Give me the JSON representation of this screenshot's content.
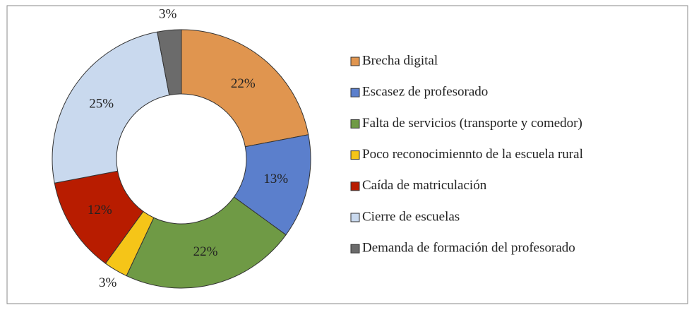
{
  "chart_data": {
    "type": "donut",
    "categories": [
      "Brecha digital",
      "Escasez de profesorado",
      "Falta de servicios (transporte y comedor)",
      "Poco reconocimiennto de la escuela rural",
      "Caída de matriculación",
      "Cierre de escuelas",
      "Demanda de formación del profesorado"
    ],
    "values": [
      22,
      13,
      22,
      3,
      12,
      25,
      3
    ],
    "value_labels": [
      "22%",
      "13%",
      "22%",
      "3%",
      "12%",
      "25%",
      "3%"
    ],
    "colors": [
      "#e0954f",
      "#5b7fcc",
      "#6f9a45",
      "#f5c518",
      "#b81c00",
      "#c9d9ee",
      "#6b6b6b"
    ],
    "legend": "right"
  }
}
